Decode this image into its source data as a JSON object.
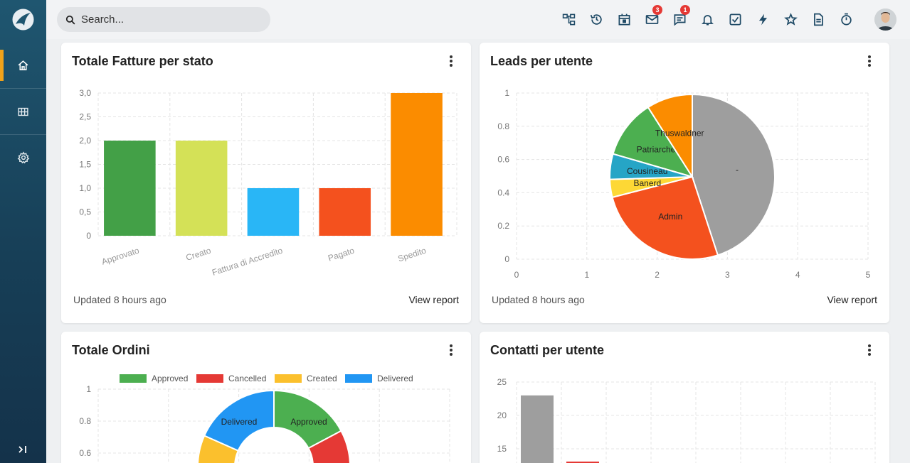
{
  "sidebar": {
    "items": [
      {
        "icon": "home-icon",
        "active": true
      },
      {
        "icon": "grid-icon",
        "active": false
      },
      {
        "icon": "gear-icon",
        "active": false
      }
    ],
    "collapse_label": ">|"
  },
  "topbar": {
    "search": {
      "placeholder": "Search..."
    },
    "icons": [
      {
        "name": "sitemap-icon"
      },
      {
        "name": "history-icon"
      },
      {
        "name": "calendar-icon"
      },
      {
        "name": "mail-icon",
        "badge": "3"
      },
      {
        "name": "chat-icon",
        "badge": "1"
      },
      {
        "name": "bell-icon"
      },
      {
        "name": "task-check-icon"
      },
      {
        "name": "lightning-icon"
      },
      {
        "name": "star-icon"
      },
      {
        "name": "document-icon"
      },
      {
        "name": "timer-icon"
      }
    ]
  },
  "cards": {
    "fatture": {
      "title": "Totale Fatture per stato",
      "updated": "Updated 8 hours ago",
      "view_report": "View report"
    },
    "leads": {
      "title": "Leads per utente",
      "updated": "Updated 8 hours ago",
      "view_report": "View report"
    },
    "ordini": {
      "title": "Totale Ordini"
    },
    "contatti": {
      "title": "Contatti per utente"
    }
  },
  "chart_data": [
    {
      "type": "bar",
      "categories": [
        "Approvato",
        "Creato",
        "Fattura di Accredito",
        "Pagato",
        "Spedito"
      ],
      "values": [
        2,
        2,
        1,
        1,
        3
      ],
      "colors": [
        "#43a047",
        "#d4e157",
        "#29b6f6",
        "#f4511e",
        "#fb8c00"
      ],
      "ylim": [
        0,
        3
      ],
      "yticks": [
        "0",
        "0,5",
        "1,0",
        "1,5",
        "2,0",
        "2,5",
        "3,0"
      ],
      "grid": true
    },
    {
      "type": "pie",
      "labels": [
        "-",
        "Admin",
        "Banerd",
        "Cousineau",
        "Patriarche",
        "Thuswaldner"
      ],
      "values": [
        45,
        26,
        3.5,
        5,
        11.5,
        9
      ],
      "colors": [
        "#9e9e9e",
        "#f4511e",
        "#fdd835",
        "#26a5c6",
        "#4caf50",
        "#fb8c00"
      ],
      "xlim": [
        0,
        5
      ],
      "xticks": [
        "0",
        "1",
        "2",
        "3",
        "4",
        "5"
      ],
      "ylim": [
        0,
        1
      ],
      "yticks": [
        "0",
        "0.2",
        "0.4",
        "0.6",
        "0.8",
        "1"
      ],
      "grid": true
    },
    {
      "type": "pie",
      "legend": [
        "Approved",
        "Cancelled",
        "Created",
        "Delivered"
      ],
      "legend_colors": [
        "#4caf50",
        "#e53935",
        "#fbc02d",
        "#2196f3"
      ],
      "labels": [
        "Approved",
        "Delivered"
      ],
      "yticks": [
        "1",
        "0.8",
        "0.6"
      ],
      "legend_position": "top",
      "grid": true
    },
    {
      "type": "bar",
      "values": [
        23
      ],
      "colors": [
        "#9e9e9e"
      ],
      "yticks": [
        "25",
        "20",
        "15"
      ],
      "grid": true
    }
  ]
}
